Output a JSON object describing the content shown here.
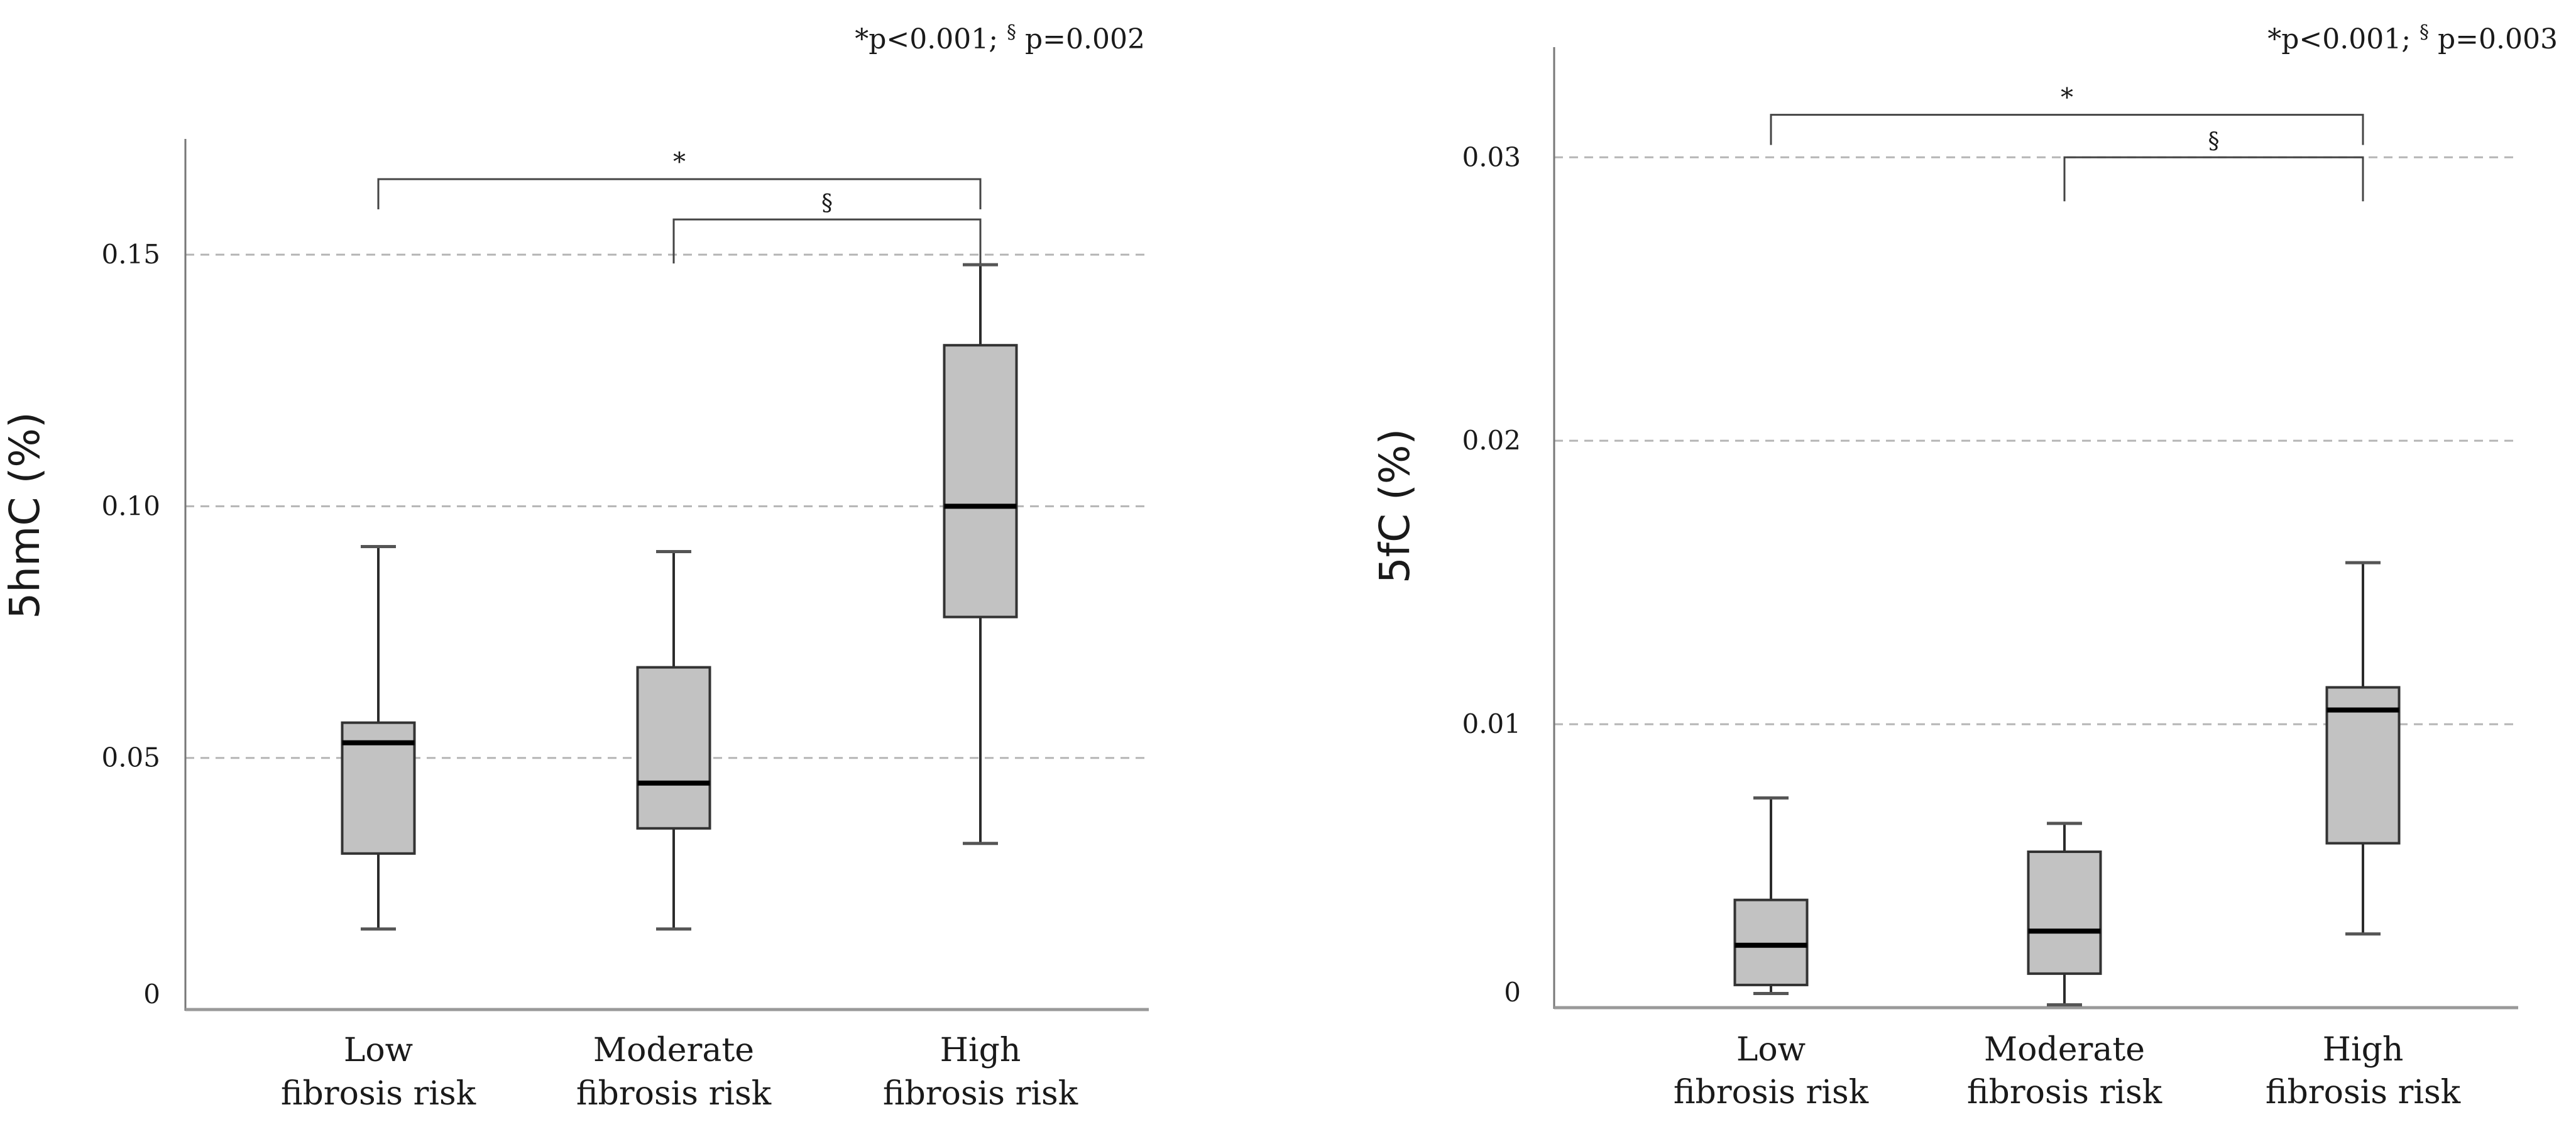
{
  "chart_data": [
    {
      "type": "box",
      "ylabel": "5hmC (%)",
      "xlabel": "",
      "ylim": [
        0,
        0.168
      ],
      "grid": true,
      "yticks": [
        {
          "value": 0,
          "label": "0"
        },
        {
          "value": 0.05,
          "label": "0.05"
        },
        {
          "value": 0.1,
          "label": "0.10"
        },
        {
          "value": 0.15,
          "label": "0.15"
        }
      ],
      "categories": [
        {
          "line1": "Low",
          "line2": "fibrosis risk"
        },
        {
          "line1": "Moderate",
          "line2": "fibrosis risk"
        },
        {
          "line1": "High",
          "line2": "fibrosis risk"
        }
      ],
      "boxes": [
        {
          "min": 0.016,
          "q1": 0.031,
          "median": 0.053,
          "q3": 0.057,
          "max": 0.092
        },
        {
          "min": 0.016,
          "q1": 0.036,
          "median": 0.045,
          "q3": 0.068,
          "max": 0.091
        },
        {
          "min": 0.033,
          "q1": 0.078,
          "median": 0.1,
          "q3": 0.132,
          "max": 0.148
        }
      ],
      "brackets": [
        {
          "from": 0,
          "to": 2,
          "y": 0.165,
          "label": "*"
        },
        {
          "from": 1,
          "to": 2,
          "y": 0.157,
          "label": "§"
        }
      ],
      "pvalue_note": {
        "star": "*p<0.001; ",
        "sect": "§",
        "rest": " p=0.002"
      }
    },
    {
      "type": "box",
      "ylabel": "5fC (%)",
      "xlabel": "",
      "ylim": [
        0,
        0.033
      ],
      "grid": true,
      "yticks": [
        {
          "value": 0,
          "label": "0"
        },
        {
          "value": 0.01,
          "label": "0.01"
        },
        {
          "value": 0.02,
          "label": "0.02"
        },
        {
          "value": 0.03,
          "label": "0.03"
        }
      ],
      "categories": [
        {
          "line1": "Low",
          "line2": "fibrosis risk"
        },
        {
          "line1": "Moderate",
          "line2": "fibrosis risk"
        },
        {
          "line1": "High",
          "line2": "fibrosis risk"
        }
      ],
      "boxes": [
        {
          "min": 0.0005,
          "q1": 0.0008,
          "median": 0.0022,
          "q3": 0.0038,
          "max": 0.0074
        },
        {
          "min": 0.0001,
          "q1": 0.0012,
          "median": 0.0027,
          "q3": 0.0055,
          "max": 0.0065
        },
        {
          "min": 0.0026,
          "q1": 0.0058,
          "median": 0.0105,
          "q3": 0.0113,
          "max": 0.0157
        }
      ],
      "brackets": [
        {
          "from": 0,
          "to": 2,
          "y": 0.0315,
          "label": "*"
        },
        {
          "from": 1,
          "to": 2,
          "y": 0.03,
          "label": "§"
        }
      ],
      "pvalue_note": {
        "star": "*p<0.001; ",
        "sect": "§",
        "rest": " p=0.003"
      }
    }
  ]
}
